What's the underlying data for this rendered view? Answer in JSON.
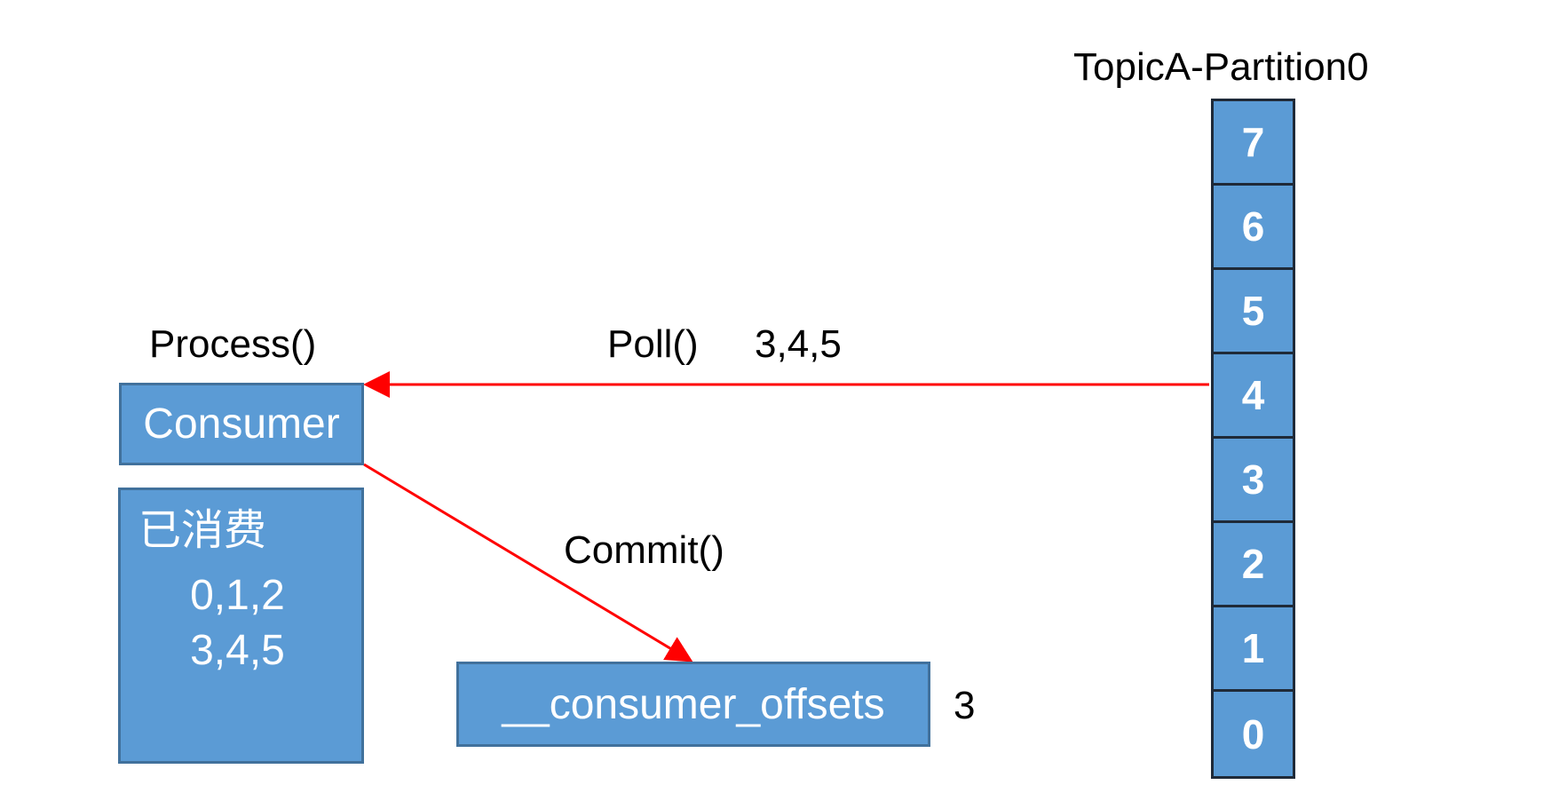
{
  "partition": {
    "title": "TopicA-Partition0",
    "cells": [
      "7",
      "6",
      "5",
      "4",
      "3",
      "2",
      "1",
      "0"
    ]
  },
  "consumer": {
    "process_label": "Process()",
    "name": "Consumer"
  },
  "consumed": {
    "title": "已消费",
    "lines": [
      "0,1,2",
      "3,4,5"
    ]
  },
  "poll": {
    "label": "Poll()",
    "values": "3,4,5"
  },
  "commit": {
    "label": "Commit()"
  },
  "offsets": {
    "name": "__consumer_offsets",
    "value": "3"
  },
  "colors": {
    "box_fill": "#5b9bd5",
    "box_border": "#41719c",
    "arrow": "#ff0000"
  }
}
